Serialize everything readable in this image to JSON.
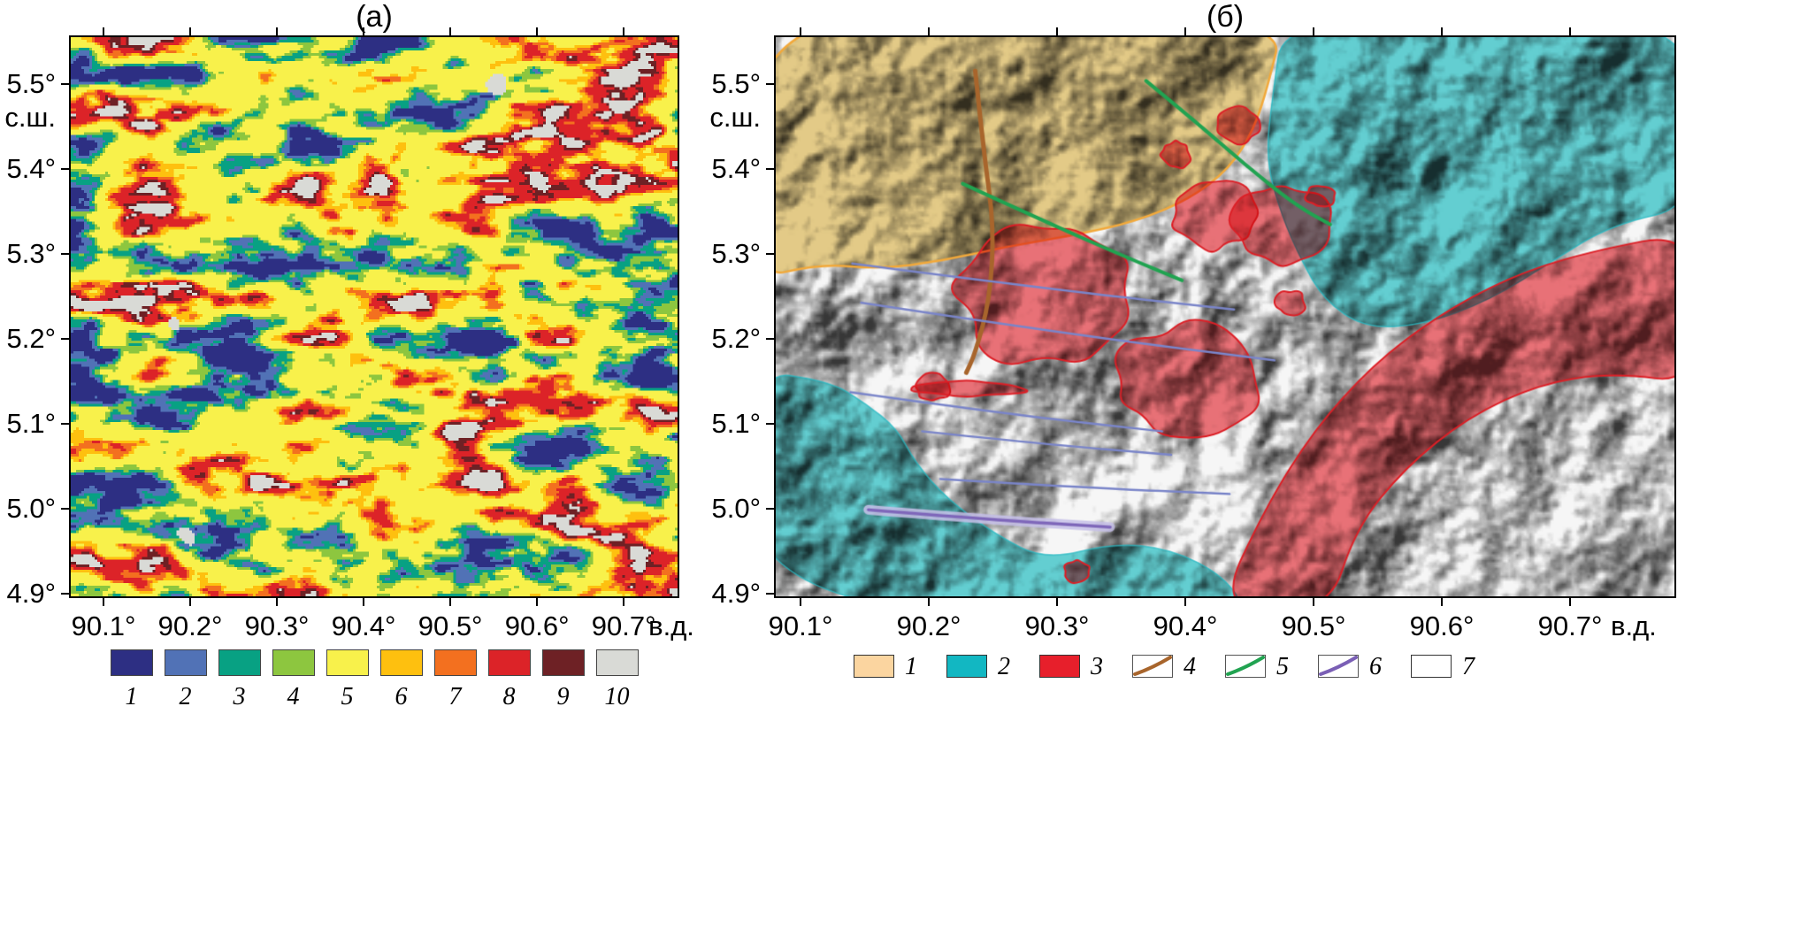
{
  "panel_a": {
    "title": "(а)",
    "y_unit": "с.ш.",
    "x_unit": "в.д.",
    "y_ticks": [
      "5.5°",
      "5.4°",
      "5.3°",
      "5.2°",
      "5.1°",
      "5.0°",
      "4.9°"
    ],
    "x_ticks": [
      "90.1°",
      "90.2°",
      "90.3°",
      "90.4°",
      "90.5°",
      "90.6°",
      "90.7°"
    ],
    "legend": [
      {
        "label": "1",
        "color": "#2d2f83"
      },
      {
        "label": "2",
        "color": "#5172b6"
      },
      {
        "label": "3",
        "color": "#08a183"
      },
      {
        "label": "4",
        "color": "#8dc63f"
      },
      {
        "label": "5",
        "color": "#f8f14b"
      },
      {
        "label": "6",
        "color": "#fec00f"
      },
      {
        "label": "7",
        "color": "#f3701f"
      },
      {
        "label": "8",
        "color": "#dc2328"
      },
      {
        "label": "9",
        "color": "#6e2125"
      },
      {
        "label": "10",
        "color": "#d9dad6"
      }
    ]
  },
  "panel_b": {
    "title": "(б)",
    "y_unit": "с.ш.",
    "x_unit": "в.д.",
    "y_ticks": [
      "5.5°",
      "5.4°",
      "5.3°",
      "5.2°",
      "5.1°",
      "5.0°",
      "4.9°"
    ],
    "x_ticks": [
      "90.1°",
      "90.2°",
      "90.3°",
      "90.4°",
      "90.5°",
      "90.6°",
      "90.7°"
    ],
    "legend": [
      {
        "label": "1",
        "type": "fill",
        "color": "#fbd5a0"
      },
      {
        "label": "2",
        "type": "fill",
        "color": "#12b7c2"
      },
      {
        "label": "3",
        "type": "fill",
        "color": "#e71f2b"
      },
      {
        "label": "4",
        "type": "line",
        "color": "#a8652c"
      },
      {
        "label": "5",
        "type": "line",
        "color": "#21a351"
      },
      {
        "label": "6",
        "type": "line",
        "color": "#7a5fb5"
      },
      {
        "label": "7",
        "type": "empty",
        "color": "#ffffff"
      }
    ]
  },
  "map_colors": {
    "tan_fill": "#ecd28c",
    "tan_stroke": "#f2a93b",
    "cyan_fill": "#66d6d9",
    "cyan_stroke": "#28b9c3",
    "red_fill": "#f2868c",
    "red_stroke": "#dc2027",
    "brown_line": "#a8652c",
    "green_line": "#21a351",
    "slate_line": "#7a85c9",
    "purple_band_outer": "#c6c0e8",
    "purple_band_inner": "#7f68ba"
  }
}
